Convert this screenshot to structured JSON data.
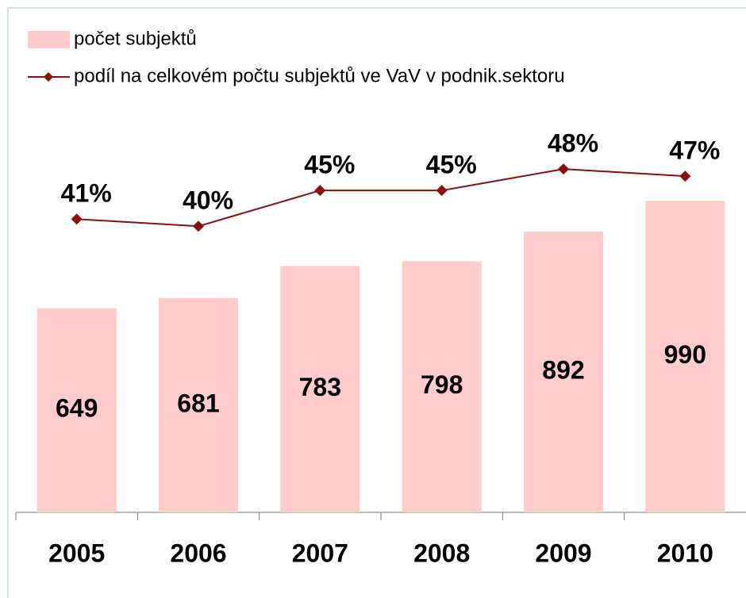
{
  "chart_data": {
    "type": "bar_line",
    "categories": [
      "2005",
      "2006",
      "2007",
      "2008",
      "2009",
      "2010"
    ],
    "series": [
      {
        "name": "počet subjektů",
        "type": "bar",
        "color": "#ffcccc",
        "values": [
          649,
          681,
          783,
          798,
          892,
          990
        ]
      },
      {
        "name": "podíl na celkovém počtu subjektů ve VaV v podnik.sektoru",
        "type": "line",
        "axis": "y2",
        "color": "#8b0f0f",
        "values": [
          41,
          40,
          45,
          45,
          48,
          47
        ],
        "value_labels": [
          "41%",
          "40%",
          "45%",
          "45%",
          "48%",
          "47%"
        ]
      }
    ],
    "ylim": [
      0,
      1250
    ],
    "y2lim": [
      0,
      55
    ],
    "legend": "top-left"
  }
}
